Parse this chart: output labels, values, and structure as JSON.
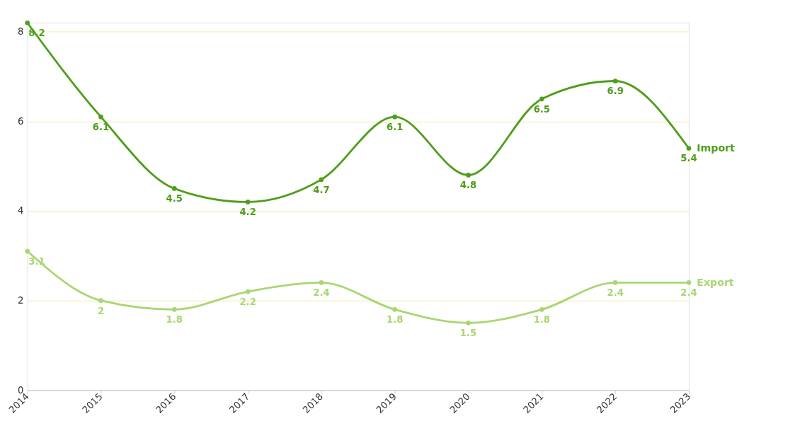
{
  "chart_data": {
    "type": "line",
    "categories": [
      "2014",
      "2015",
      "2016",
      "2017",
      "2018",
      "2019",
      "2020",
      "2021",
      "2022",
      "2023"
    ],
    "series": [
      {
        "name": "Import",
        "color": "#4f9e1c",
        "values": [
          8.2,
          6.1,
          4.5,
          4.2,
          4.7,
          6.1,
          4.8,
          6.5,
          6.9,
          5.4
        ]
      },
      {
        "name": "Export",
        "color": "#a9d672",
        "values": [
          3.1,
          2,
          1.8,
          2.2,
          2.4,
          1.8,
          1.5,
          1.8,
          2.4,
          2.4
        ]
      }
    ],
    "ylim": [
      0,
      8.2
    ],
    "yticks": [
      0,
      2,
      4,
      6,
      8
    ],
    "grid": "y",
    "marker": "circle",
    "line_style": "solid",
    "data_labels": true
  }
}
